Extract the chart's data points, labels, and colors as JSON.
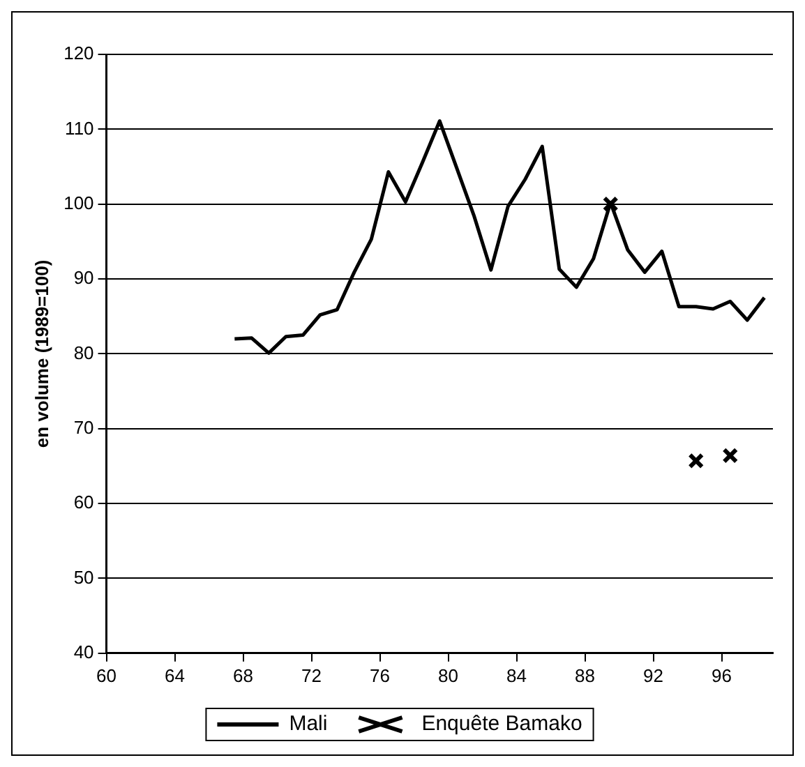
{
  "chart_data": {
    "type": "line",
    "ylabel": "en volume (1989=100)",
    "xlim": [
      60,
      99
    ],
    "xticks": [
      60,
      64,
      68,
      72,
      76,
      80,
      84,
      88,
      92,
      96
    ],
    "ylim": [
      40,
      120
    ],
    "yticks": [
      40,
      50,
      60,
      70,
      80,
      90,
      100,
      110,
      120
    ],
    "grid": "y",
    "legend": "bottom",
    "line_style": "solid",
    "series": [
      {
        "name": "Mali",
        "color": "#000000",
        "marker": "none",
        "x": [
          67.5,
          68.5,
          69.5,
          70.5,
          71.5,
          72.5,
          73.5,
          74.5,
          75.5,
          76.5,
          77.5,
          78.5,
          79.5,
          80.5,
          81.5,
          82.5,
          83.5,
          84.5,
          85.5,
          86.5,
          87.5,
          88.5,
          89.5,
          90.5,
          91.5,
          92.5,
          93.5,
          94.5,
          95.5,
          96.5,
          97.5,
          98.5
        ],
        "values": [
          82.0,
          82.1,
          80.1,
          82.3,
          82.5,
          85.2,
          85.9,
          90.9,
          95.3,
          104.3,
          100.3,
          105.6,
          111.1,
          104.8,
          98.5,
          91.2,
          99.7,
          103.3,
          107.7,
          91.3,
          88.9,
          92.7,
          100.2,
          93.9,
          90.9,
          93.7,
          86.3,
          86.3,
          86.0,
          87.0,
          84.5,
          87.5
        ]
      },
      {
        "name": "Enquête Bamako",
        "type": "scatter",
        "color": "#000000",
        "marker": "cross",
        "x": [
          89.5,
          94.5,
          96.5
        ],
        "values": [
          100,
          65.7,
          66.4
        ]
      }
    ]
  }
}
